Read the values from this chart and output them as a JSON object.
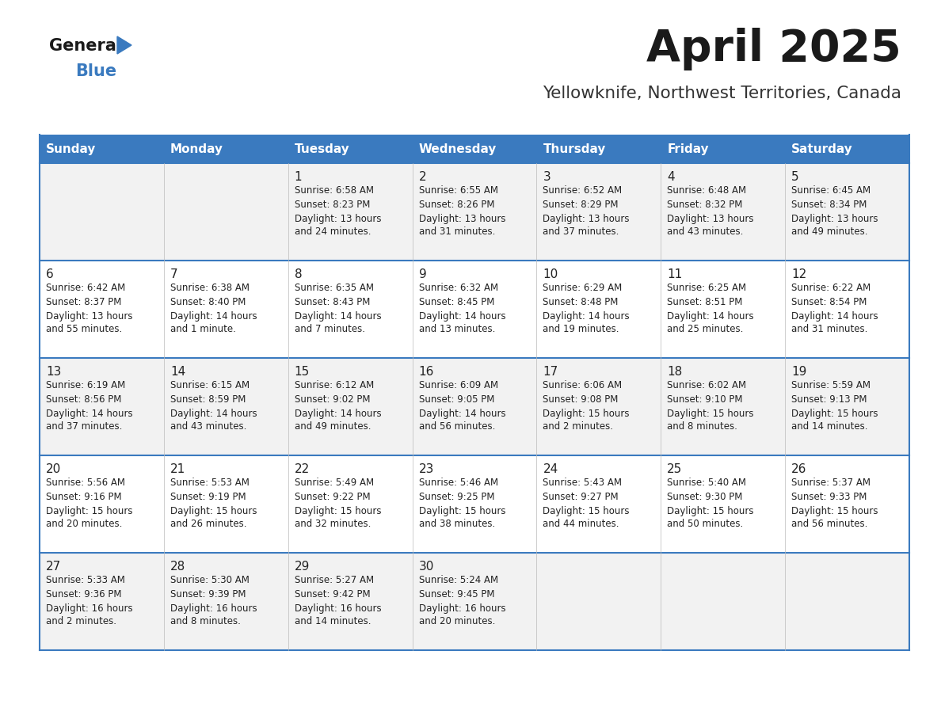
{
  "title": "April 2025",
  "subtitle": "Yellowknife, Northwest Territories, Canada",
  "days_of_week": [
    "Sunday",
    "Monday",
    "Tuesday",
    "Wednesday",
    "Thursday",
    "Friday",
    "Saturday"
  ],
  "header_bg": "#3a7abf",
  "header_text": "#ffffff",
  "row_bg_even": "#f2f2f2",
  "row_bg_odd": "#ffffff",
  "cell_text_color": "#222222",
  "border_color": "#3a7abf",
  "inner_border_color": "#bbbbbb",
  "title_color": "#1a1a1a",
  "subtitle_color": "#333333",
  "logo_general_color": "#1a1a1a",
  "logo_blue_color": "#3a7abf",
  "calendar_data": [
    [
      {
        "day": "",
        "sunrise": "",
        "sunset": "",
        "daylight": ""
      },
      {
        "day": "",
        "sunrise": "",
        "sunset": "",
        "daylight": ""
      },
      {
        "day": "1",
        "sunrise": "Sunrise: 6:58 AM",
        "sunset": "Sunset: 8:23 PM",
        "daylight": "Daylight: 13 hours\nand 24 minutes."
      },
      {
        "day": "2",
        "sunrise": "Sunrise: 6:55 AM",
        "sunset": "Sunset: 8:26 PM",
        "daylight": "Daylight: 13 hours\nand 31 minutes."
      },
      {
        "day": "3",
        "sunrise": "Sunrise: 6:52 AM",
        "sunset": "Sunset: 8:29 PM",
        "daylight": "Daylight: 13 hours\nand 37 minutes."
      },
      {
        "day": "4",
        "sunrise": "Sunrise: 6:48 AM",
        "sunset": "Sunset: 8:32 PM",
        "daylight": "Daylight: 13 hours\nand 43 minutes."
      },
      {
        "day": "5",
        "sunrise": "Sunrise: 6:45 AM",
        "sunset": "Sunset: 8:34 PM",
        "daylight": "Daylight: 13 hours\nand 49 minutes."
      }
    ],
    [
      {
        "day": "6",
        "sunrise": "Sunrise: 6:42 AM",
        "sunset": "Sunset: 8:37 PM",
        "daylight": "Daylight: 13 hours\nand 55 minutes."
      },
      {
        "day": "7",
        "sunrise": "Sunrise: 6:38 AM",
        "sunset": "Sunset: 8:40 PM",
        "daylight": "Daylight: 14 hours\nand 1 minute."
      },
      {
        "day": "8",
        "sunrise": "Sunrise: 6:35 AM",
        "sunset": "Sunset: 8:43 PM",
        "daylight": "Daylight: 14 hours\nand 7 minutes."
      },
      {
        "day": "9",
        "sunrise": "Sunrise: 6:32 AM",
        "sunset": "Sunset: 8:45 PM",
        "daylight": "Daylight: 14 hours\nand 13 minutes."
      },
      {
        "day": "10",
        "sunrise": "Sunrise: 6:29 AM",
        "sunset": "Sunset: 8:48 PM",
        "daylight": "Daylight: 14 hours\nand 19 minutes."
      },
      {
        "day": "11",
        "sunrise": "Sunrise: 6:25 AM",
        "sunset": "Sunset: 8:51 PM",
        "daylight": "Daylight: 14 hours\nand 25 minutes."
      },
      {
        "day": "12",
        "sunrise": "Sunrise: 6:22 AM",
        "sunset": "Sunset: 8:54 PM",
        "daylight": "Daylight: 14 hours\nand 31 minutes."
      }
    ],
    [
      {
        "day": "13",
        "sunrise": "Sunrise: 6:19 AM",
        "sunset": "Sunset: 8:56 PM",
        "daylight": "Daylight: 14 hours\nand 37 minutes."
      },
      {
        "day": "14",
        "sunrise": "Sunrise: 6:15 AM",
        "sunset": "Sunset: 8:59 PM",
        "daylight": "Daylight: 14 hours\nand 43 minutes."
      },
      {
        "day": "15",
        "sunrise": "Sunrise: 6:12 AM",
        "sunset": "Sunset: 9:02 PM",
        "daylight": "Daylight: 14 hours\nand 49 minutes."
      },
      {
        "day": "16",
        "sunrise": "Sunrise: 6:09 AM",
        "sunset": "Sunset: 9:05 PM",
        "daylight": "Daylight: 14 hours\nand 56 minutes."
      },
      {
        "day": "17",
        "sunrise": "Sunrise: 6:06 AM",
        "sunset": "Sunset: 9:08 PM",
        "daylight": "Daylight: 15 hours\nand 2 minutes."
      },
      {
        "day": "18",
        "sunrise": "Sunrise: 6:02 AM",
        "sunset": "Sunset: 9:10 PM",
        "daylight": "Daylight: 15 hours\nand 8 minutes."
      },
      {
        "day": "19",
        "sunrise": "Sunrise: 5:59 AM",
        "sunset": "Sunset: 9:13 PM",
        "daylight": "Daylight: 15 hours\nand 14 minutes."
      }
    ],
    [
      {
        "day": "20",
        "sunrise": "Sunrise: 5:56 AM",
        "sunset": "Sunset: 9:16 PM",
        "daylight": "Daylight: 15 hours\nand 20 minutes."
      },
      {
        "day": "21",
        "sunrise": "Sunrise: 5:53 AM",
        "sunset": "Sunset: 9:19 PM",
        "daylight": "Daylight: 15 hours\nand 26 minutes."
      },
      {
        "day": "22",
        "sunrise": "Sunrise: 5:49 AM",
        "sunset": "Sunset: 9:22 PM",
        "daylight": "Daylight: 15 hours\nand 32 minutes."
      },
      {
        "day": "23",
        "sunrise": "Sunrise: 5:46 AM",
        "sunset": "Sunset: 9:25 PM",
        "daylight": "Daylight: 15 hours\nand 38 minutes."
      },
      {
        "day": "24",
        "sunrise": "Sunrise: 5:43 AM",
        "sunset": "Sunset: 9:27 PM",
        "daylight": "Daylight: 15 hours\nand 44 minutes."
      },
      {
        "day": "25",
        "sunrise": "Sunrise: 5:40 AM",
        "sunset": "Sunset: 9:30 PM",
        "daylight": "Daylight: 15 hours\nand 50 minutes."
      },
      {
        "day": "26",
        "sunrise": "Sunrise: 5:37 AM",
        "sunset": "Sunset: 9:33 PM",
        "daylight": "Daylight: 15 hours\nand 56 minutes."
      }
    ],
    [
      {
        "day": "27",
        "sunrise": "Sunrise: 5:33 AM",
        "sunset": "Sunset: 9:36 PM",
        "daylight": "Daylight: 16 hours\nand 2 minutes."
      },
      {
        "day": "28",
        "sunrise": "Sunrise: 5:30 AM",
        "sunset": "Sunset: 9:39 PM",
        "daylight": "Daylight: 16 hours\nand 8 minutes."
      },
      {
        "day": "29",
        "sunrise": "Sunrise: 5:27 AM",
        "sunset": "Sunset: 9:42 PM",
        "daylight": "Daylight: 16 hours\nand 14 minutes."
      },
      {
        "day": "30",
        "sunrise": "Sunrise: 5:24 AM",
        "sunset": "Sunset: 9:45 PM",
        "daylight": "Daylight: 16 hours\nand 20 minutes."
      },
      {
        "day": "",
        "sunrise": "",
        "sunset": "",
        "daylight": ""
      },
      {
        "day": "",
        "sunrise": "",
        "sunset": "",
        "daylight": ""
      },
      {
        "day": "",
        "sunrise": "",
        "sunset": "",
        "daylight": ""
      }
    ]
  ]
}
